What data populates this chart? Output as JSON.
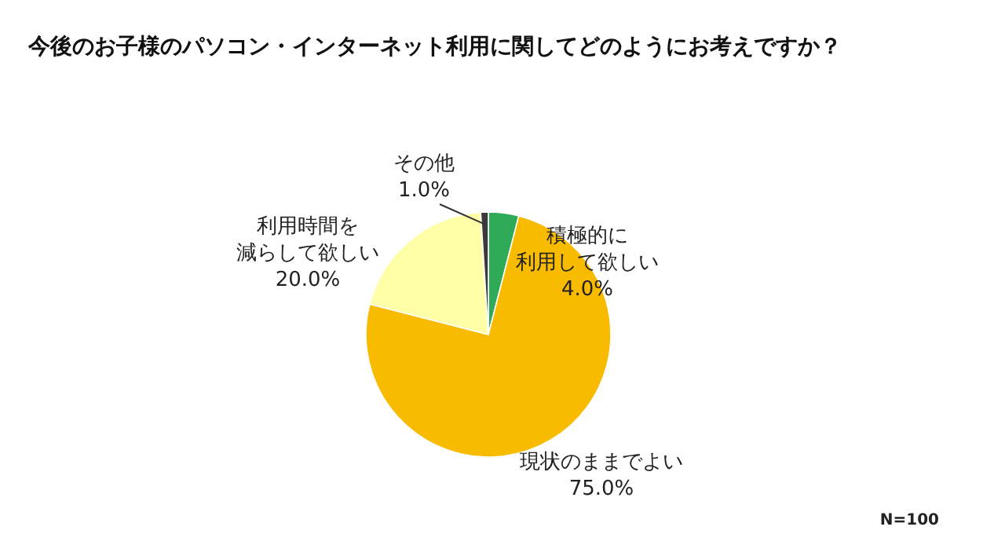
{
  "chart_data": {
    "type": "pie",
    "title": "今後のお子様のパソコン・インターネット利用に関してどのようにお考えですか？",
    "categories": [
      "積極的に利用して欲しい",
      "現状のままでよい",
      "利用時間を減らして欲しい",
      "その他"
    ],
    "values": [
      4,
      75,
      20,
      1
    ],
    "colors": [
      "#2eaa58",
      "#f8bb00",
      "#ffffa8",
      "#3a3a3a"
    ],
    "value_labels": [
      "4.0%",
      "75.0%",
      "20.0%",
      "1.0%"
    ],
    "annotations": [
      "N=100"
    ]
  }
}
